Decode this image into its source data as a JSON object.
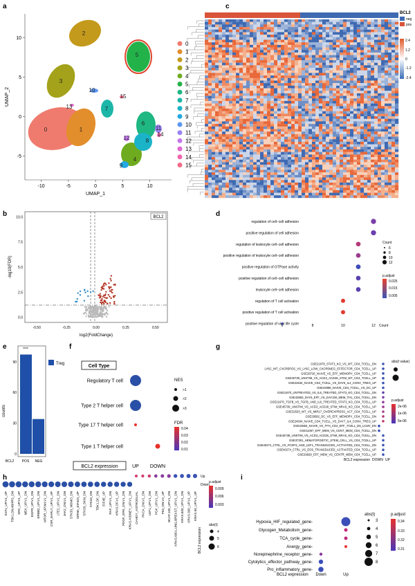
{
  "panels": {
    "a": "a",
    "b": "b",
    "c": "c",
    "d": "d",
    "e": "e",
    "f": "f",
    "g": "g",
    "h": "h",
    "i": "i"
  },
  "umap": {
    "xlabel": "UMAP_1",
    "ylabel": "UMAP_2",
    "xticks": [
      "-10",
      "-5",
      "0",
      "5",
      "10"
    ],
    "yticks": [
      "10",
      "5",
      "0",
      "-5"
    ],
    "legend": [
      "0",
      "1",
      "2",
      "3",
      "4",
      "5",
      "6",
      "7",
      "8",
      "9",
      "10",
      "11",
      "12",
      "13",
      "14",
      "15"
    ],
    "cluster_colors": [
      "#ef7b6e",
      "#e28e2c",
      "#c49a1c",
      "#a3a21a",
      "#6fab1f",
      "#23b24a",
      "#1fb782",
      "#1cb6a8",
      "#1bb3c8",
      "#22a9e2",
      "#5d97f2",
      "#9a83f5",
      "#c577ec",
      "#e069d0",
      "#ef66ac",
      "#f26b88"
    ],
    "labels": [
      "0",
      "1",
      "2",
      "3",
      "4",
      "5",
      "6",
      "7",
      "8",
      "9",
      "10",
      "11",
      "12",
      "13",
      "14",
      "15"
    ]
  },
  "volcano": {
    "xlabel": "log2(FoldChange)",
    "ylabel": "-log10(FDR)",
    "tag": "BCL2",
    "xticks": [
      "-0.50",
      "-0.25",
      "0.00",
      "0.25",
      "0.50"
    ],
    "yticks": [
      "0.0",
      "2.5",
      "5.0",
      "7.5",
      "10.0"
    ]
  },
  "heatmap": {
    "legend_title": "BCL2",
    "legend_items": [
      "neg",
      "pos"
    ],
    "scale": [
      "2.4",
      "1.2",
      "0",
      "-1.2",
      "-2.4"
    ]
  },
  "go": {
    "terms": [
      "regulation of cell−cell adhesion",
      "positive regulation of cell adhesion",
      "regulation of leukocyte cell−cell adhesion",
      "positive regulation of leukocyte cell−cell adhesion",
      "positive regulation of GTPase activity",
      "positive regulation of cell−cell adhesion",
      "leukocyte cell−cell adhesion",
      "regulation of T cell activation",
      "positive regulation of T cell activation",
      "positive regulation of viral life cycle"
    ],
    "counts": [
      12,
      12,
      11,
      11,
      11,
      11,
      11,
      10,
      10,
      6
    ],
    "xticks": [
      "6",
      "8",
      "10",
      "12"
    ],
    "xlabel": "Count",
    "count_title": "Count",
    "count_legend": [
      "6",
      "8",
      "10",
      "12"
    ],
    "p_title": "p.adjust",
    "p_legend": [
      "0.025",
      "0.015",
      "0.005"
    ]
  },
  "bars": {
    "xlabels": [
      "BCL2",
      "POS",
      "NEG"
    ],
    "ylabel": "counts",
    "yticks": [
      "0",
      "30",
      "60",
      "90"
    ],
    "legend": "Treg",
    "sig": "****",
    "values": [
      97,
      34
    ]
  },
  "celltype": {
    "title": "Cell Type",
    "rows": [
      "Regulatory T cell",
      "Type 2 T helper cell",
      "Type 17 T helper cell",
      "Type 1 T helper cell"
    ],
    "xlabel": "BCL2 expression",
    "xticks": [
      "UP",
      "DOWN"
    ],
    "nes_title": "NES",
    "nes_legend": [
      ">1",
      ">2",
      ">3"
    ],
    "fdr_title": "FDR",
    "fdr_legend": [
      "0.04",
      "0.03",
      "0.02",
      "0.01"
    ]
  },
  "gsea": {
    "terms": [
      "GSE21678_STAT3_KO_VS_WT_CD4_TCELL_DN",
      "LY6C_INT_CXCR5POS_VS_LY6C_LOW_CXCR5NEG_EFFECTOR_CD4_TCELL_UP",
      "GSE28726_NAIVE_VS_EFF_MEMORY_CD4_TCELL_UP",
      "GSE45739_UNSTIM_VS_ACD3_ACD28_STIM_WT_CD4_TCELL_UP",
      "GSE24634_NAIVE_CD4_TCELL_VS_DAY5_IL4_CONV_TREG_UP",
      "GSE22886_NAIVE_CD4_TCELL_VS_DC_UP",
      "GSE21670_UNTREATED_VS_IL6_TREATED_STAT3_KO_CD4_TCELL_DN",
      "GSE43863_DAY6_EFF_VS_DAY150_MEM_TH1_CD4_TCELL_DN",
      "GSE21670_TGFB_VS_TGFB_AND_IL6_TREATED_STAT3_KO_CD4_TCELL_UP",
      "GSE45739_UNSTIM_VS_ACD3_ACD28_STIM_NRAS_KO_CD4_TCELL_UP",
      "GSE32533_WT_VS_MIR17_OVEREXPRESS_ACT_CD4_TCELL_UP",
      "GSE29582_DC_VS_EFF_MEMORY_CD4_TCELL_DN",
      "GSE24634_NAIVE_CD4_TCELL_VS_DAY7_IL4_CONV_TREG_UP",
      "GSE43863_NAIVE_VS_TFH_CD4_EFF_TCELL_D6_LCMV_DN",
      "GSE11057_EFF_MEM_VS_CENT_MEM_CD4_TCELL_DN",
      "GSE45739_UNSTIM_VS_ACD3_ACD28_STIM_NRAS_KO_CD4_TCELL_DN",
      "GSE37301_HEMATOPOIETIC_STEM_CELL_VS_CD4_TCELL_UP",
      "GSE40274_CTRL_VS_FOXP3_AND_LEF1_TRANSDUCED_ACTIVATED_CD4_TCELL_DN",
      "GSE40274_CTRL_VS_EOS_TRANSDUCED_ACTIVATED_CD4_TCELL_UP",
      "GSE29928_EFF_MEM_VS_CENTR_MEM_CD4_TCELL_UP"
    ],
    "xlabel": "BCL2 expression",
    "xticks": [
      "DOWN",
      "UP"
    ],
    "abs_title": "abs(t value)",
    "p_title": "p.adjust",
    "p_legend": [
      "2e-06",
      "1e-06",
      "5e-06"
    ]
  },
  "signaling": {
    "labels": [
      "E2F1_UP.V1_UP",
      "TBK1.DN.48HRS_DN",
      "SRC_UP.V1_UP",
      "MEK_UP.V1_DN",
      "EGFR_UP.V1_DN",
      "ERBB2_UP.V1_DN",
      "MTOR_UP.N4.V1_DN",
      "CSR_EARLY_UP.V1_UP",
      "LTE2_UP.V1_DN",
      "JAK2_DN.V1_DN",
      "STK33_NOMO_DN",
      "SIRNA_EIF4GI_UP",
      "STK33_SKM_DN",
      "STK33_DN",
      "TBK1.DF_DN",
      "EIF4E_UP",
      "RAF_UP.V1_DN",
      "KRAS.DF.V1_UP",
      "PDGF_ERK_DN.V1_DN",
      "KRAS.KIDNEY_UP.V1_DN",
      "CAHOY_ASTROGLIAL",
      "PKCA_DN.V1_DN",
      "LEF1_UP.V1_DN",
      "PGF_UP.V1_DN",
      "P53_DN.V2_UP",
      "BCAT.100_UP.V1_DN",
      "KRAS.600.LUNG.BREAST_UP.V1_DN",
      "KRAS.600_UP.V1_DN",
      "KRAS.300_UP.V1_UP",
      "KRAS.50_UP.V1_UP"
    ],
    "y_labels": [
      "Down",
      "Up"
    ],
    "xlabel": "BCL2 expression",
    "p_title": "p.adjust",
    "p_legend": [
      "0.009",
      "0.006",
      "0.003"
    ],
    "abs_title": "abs(t)",
    "abs_legend": [
      "4",
      "5",
      "6"
    ]
  },
  "pathways": {
    "rows": [
      "Hypoxia_HIF_regulated_gene",
      "Glycogen_Metabolism_gene",
      "TCA_cycle_gene",
      "Anergy_gene",
      "Norepinephrine_receptor_gene",
      "Cytolytics_effector_pathway_gene",
      "Pro_inflammatory_gene"
    ],
    "xlabel": "BCL2 expression",
    "xticks": [
      "Down",
      "Up"
    ],
    "abs_title": "abs(t)",
    "abs_legend": [
      "3",
      "4",
      "5",
      "6",
      "7",
      "8"
    ],
    "p_title": "p.adjust",
    "p_legend": [
      "0.34",
      "0.33",
      "0.32",
      "0.31"
    ]
  }
}
